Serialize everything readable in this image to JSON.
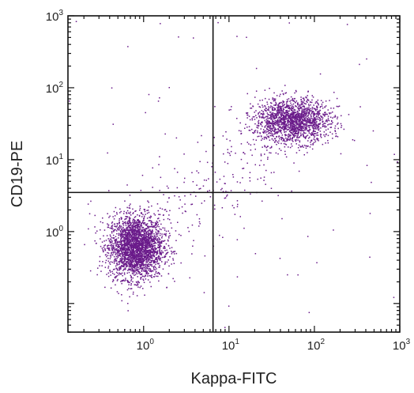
{
  "chart_data": {
    "type": "scatter",
    "title": "",
    "xlabel": "Kappa-FITC",
    "ylabel": "CD19-PE",
    "xscale": "log",
    "yscale": "log",
    "xlim": [
      0.13,
      1000
    ],
    "ylim": [
      0.04,
      1000
    ],
    "x_tick_labels": [
      {
        "base": "10",
        "exp": "0",
        "value": 1
      },
      {
        "base": "10",
        "exp": "1",
        "value": 10
      },
      {
        "base": "10",
        "exp": "2",
        "value": 100
      },
      {
        "base": "10",
        "exp": "3",
        "value": 1000
      }
    ],
    "y_tick_labels": [
      {
        "base": "10",
        "exp": "0",
        "value": 1
      },
      {
        "base": "10",
        "exp": "1",
        "value": 10
      },
      {
        "base": "10",
        "exp": "2",
        "value": 100
      },
      {
        "base": "10",
        "exp": "3",
        "value": 1000
      }
    ],
    "quadrant_gates": {
      "x": 6.5,
      "y": 3.5
    },
    "point_color": "#6a1b8a",
    "populations": [
      {
        "center_x": 0.8,
        "center_y": 0.62,
        "spread_x_decades": 0.16,
        "spread_y_decades": 0.22,
        "count": 2600
      },
      {
        "center_x": 55,
        "center_y": 35,
        "spread_x_decades": 0.22,
        "spread_y_decades": 0.15,
        "count": 1700
      }
    ],
    "grid": false,
    "legend": "none"
  }
}
